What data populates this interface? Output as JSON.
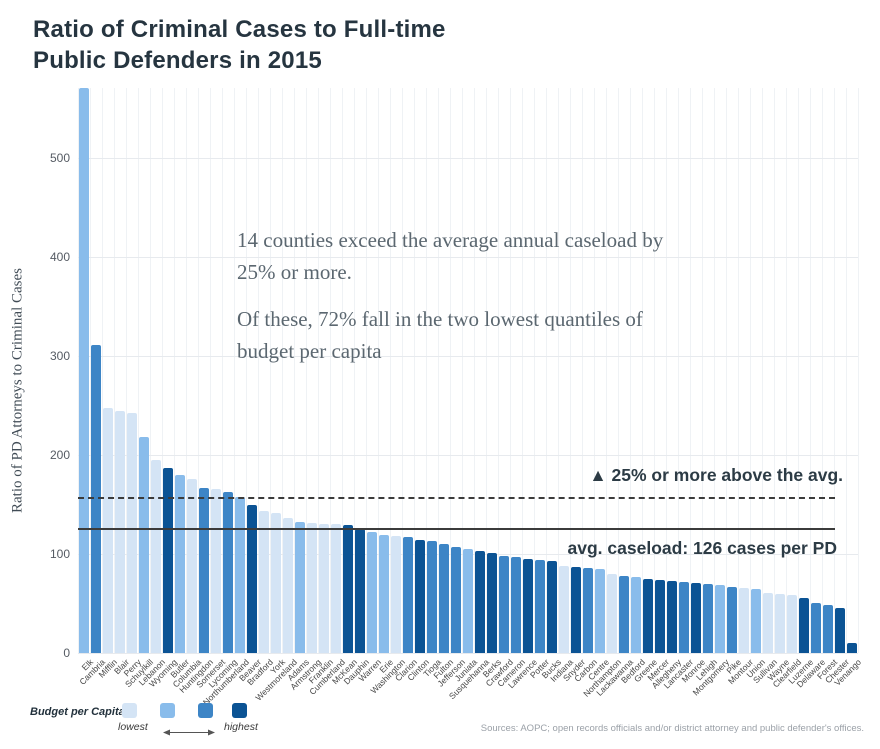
{
  "title": {
    "line1": "Ratio of Criminal Cases to Full-time",
    "line2": "Public Defenders in 2015"
  },
  "annotations": {
    "paragraph1": "14 counties exceed the average annual caseload by 25% or more.",
    "paragraph2": "Of these, 72% fall in the two lowest quantiles of budget per capita",
    "threshold_label": "▲ 25% or more above the avg.",
    "average_label": "avg. caseload: 126 cases per PD"
  },
  "legend": {
    "title": "Budget per Capita",
    "low_label": "lowest",
    "high_label": "highest"
  },
  "source": "Sources: AOPC; open records officials and/or district attorney and public defender's offices.",
  "chart_data": {
    "type": "bar",
    "title": "Ratio of Criminal Cases to Full-time Public Defenders in 2015",
    "xlabel": "",
    "ylabel": "Ratio of PD Attorneys to Criminal Cases",
    "ylim": [
      0,
      570
    ],
    "yticks": [
      0,
      100,
      200,
      300,
      400,
      500
    ],
    "grid": true,
    "legend_position": "bottom-left",
    "average_line": {
      "value": 126,
      "style": "solid"
    },
    "threshold_line": {
      "value": 157.5,
      "style": "dashed"
    },
    "quantile_colors": {
      "q1": "#d4e4f5",
      "q2": "#89bceb",
      "q3": "#3d85c6",
      "q4": "#0b5394"
    },
    "counties": [
      {
        "name": "Elk",
        "value": 575,
        "q": "q2"
      },
      {
        "name": "Cambria",
        "value": 311,
        "q": "q3"
      },
      {
        "name": "Mifflin",
        "value": 248,
        "q": "q1"
      },
      {
        "name": "Blair",
        "value": 244,
        "q": "q1"
      },
      {
        "name": "Perry",
        "value": 242,
        "q": "q1"
      },
      {
        "name": "Schuylkill",
        "value": 218,
        "q": "q2"
      },
      {
        "name": "Lebanon",
        "value": 195,
        "q": "q1"
      },
      {
        "name": "Wyoming",
        "value": 187,
        "q": "q4"
      },
      {
        "name": "Butler",
        "value": 180,
        "q": "q2"
      },
      {
        "name": "Columbia",
        "value": 176,
        "q": "q1"
      },
      {
        "name": "Huntingdon",
        "value": 167,
        "q": "q3"
      },
      {
        "name": "Somerset",
        "value": 166,
        "q": "q1"
      },
      {
        "name": "Lycoming",
        "value": 163,
        "q": "q3"
      },
      {
        "name": "Northumberland",
        "value": 158,
        "q": "q2"
      },
      {
        "name": "Beaver",
        "value": 150,
        "q": "q4"
      },
      {
        "name": "Bradford",
        "value": 143,
        "q": "q1"
      },
      {
        "name": "York",
        "value": 141,
        "q": "q1"
      },
      {
        "name": "Westmoreland",
        "value": 136,
        "q": "q1"
      },
      {
        "name": "Adams",
        "value": 132,
        "q": "q2"
      },
      {
        "name": "Armstrong",
        "value": 131,
        "q": "q1"
      },
      {
        "name": "Franklin",
        "value": 130,
        "q": "q1"
      },
      {
        "name": "Cumberland",
        "value": 130,
        "q": "q1"
      },
      {
        "name": "McKean",
        "value": 129,
        "q": "q4"
      },
      {
        "name": "Dauphin",
        "value": 125,
        "q": "q4"
      },
      {
        "name": "Warren",
        "value": 122,
        "q": "q2"
      },
      {
        "name": "Erie",
        "value": 119,
        "q": "q2"
      },
      {
        "name": "Washington",
        "value": 118,
        "q": "q1"
      },
      {
        "name": "Clarion",
        "value": 117,
        "q": "q3"
      },
      {
        "name": "Clinton",
        "value": 114,
        "q": "q4"
      },
      {
        "name": "Tioga",
        "value": 113,
        "q": "q3"
      },
      {
        "name": "Fulton",
        "value": 110,
        "q": "q3"
      },
      {
        "name": "Jefferson",
        "value": 107,
        "q": "q3"
      },
      {
        "name": "Juniata",
        "value": 105,
        "q": "q2"
      },
      {
        "name": "Susquehanna",
        "value": 103,
        "q": "q4"
      },
      {
        "name": "Berks",
        "value": 101,
        "q": "q4"
      },
      {
        "name": "Crawford",
        "value": 98,
        "q": "q3"
      },
      {
        "name": "Cameron",
        "value": 97,
        "q": "q3"
      },
      {
        "name": "Lawrence",
        "value": 95,
        "q": "q4"
      },
      {
        "name": "Potter",
        "value": 94,
        "q": "q3"
      },
      {
        "name": "Bucks",
        "value": 93,
        "q": "q4"
      },
      {
        "name": "Indiana",
        "value": 88,
        "q": "q1"
      },
      {
        "name": "Snyder",
        "value": 87,
        "q": "q4"
      },
      {
        "name": "Carbon",
        "value": 86,
        "q": "q3"
      },
      {
        "name": "Centre",
        "value": 85,
        "q": "q2"
      },
      {
        "name": "Northampton",
        "value": 80,
        "q": "q1"
      },
      {
        "name": "Lackawanna",
        "value": 78,
        "q": "q3"
      },
      {
        "name": "Bedford",
        "value": 77,
        "q": "q2"
      },
      {
        "name": "Greene",
        "value": 75,
        "q": "q4"
      },
      {
        "name": "Mercer",
        "value": 74,
        "q": "q4"
      },
      {
        "name": "Allegheny",
        "value": 73,
        "q": "q4"
      },
      {
        "name": "Lancaster",
        "value": 72,
        "q": "q3"
      },
      {
        "name": "Monroe",
        "value": 71,
        "q": "q4"
      },
      {
        "name": "Lehigh",
        "value": 70,
        "q": "q3"
      },
      {
        "name": "Montgomery",
        "value": 69,
        "q": "q2"
      },
      {
        "name": "Pike",
        "value": 67,
        "q": "q3"
      },
      {
        "name": "Montour",
        "value": 66,
        "q": "q1"
      },
      {
        "name": "Union",
        "value": 65,
        "q": "q2"
      },
      {
        "name": "Sullivan",
        "value": 61,
        "q": "q1"
      },
      {
        "name": "Wayne",
        "value": 60,
        "q": "q1"
      },
      {
        "name": "Clearfield",
        "value": 59,
        "q": "q1"
      },
      {
        "name": "Luzerne",
        "value": 56,
        "q": "q4"
      },
      {
        "name": "Delaware",
        "value": 51,
        "q": "q3"
      },
      {
        "name": "Forest",
        "value": 49,
        "q": "q3"
      },
      {
        "name": "Chester",
        "value": 46,
        "q": "q4"
      },
      {
        "name": "Venango",
        "value": 10,
        "q": "q4"
      }
    ]
  }
}
